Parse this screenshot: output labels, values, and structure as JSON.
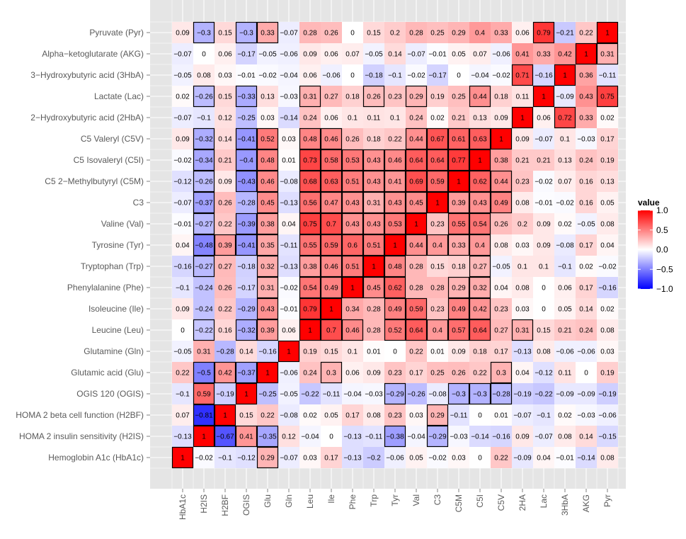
{
  "chart_data": {
    "type": "heatmap",
    "title": "",
    "xlabel": "",
    "ylabel": "",
    "x_labels": [
      "HbA1c",
      "H2IS",
      "H2BF",
      "OGIS",
      "Glu",
      "Gln",
      "Leu",
      "Ile",
      "Phe",
      "Trp",
      "Tyr",
      "Val",
      "C3",
      "C5M",
      "C5I",
      "C5V",
      "2HA",
      "Lac",
      "3HbA",
      "AKG",
      "Pyr"
    ],
    "y_labels": [
      "Pyruvate (Pyr)",
      "Alpha−ketoglutarate (AKG)",
      "3−Hydroxybutyric acid (3HbA)",
      "Lactate (Lac)",
      "2−Hydroxybutyric acid (2HbA)",
      "C5 Valeryl (C5V)",
      "C5 Isovaleryl (C5I)",
      "C5 2−Methylbutyryl (C5M)",
      "C3",
      "Valine (Val)",
      "Tyrosine (Tyr)",
      "Tryptophan (Trp)",
      "Phenylalanine (Phe)",
      "Isoleucine (Ile)",
      "Leucine (Leu)",
      "Glutamine (Gln)",
      "Glutamic acid (Glu)",
      "OGIS 120 (OGIS)",
      "HOMA 2 beta cell function (H2BF)",
      "HOMA 2 insulin sensitivity (H2IS)",
      "Hemoglobin A1c (HbA1c)"
    ],
    "values": [
      [
        0.09,
        -0.3,
        0.15,
        -0.3,
        0.33,
        -0.07,
        0.28,
        0.26,
        0,
        0.15,
        0.2,
        0.28,
        0.25,
        0.29,
        0.4,
        0.33,
        0.06,
        0.79,
        -0.21,
        0.22,
        1
      ],
      [
        -0.07,
        0,
        0.06,
        -0.17,
        -0.05,
        -0.06,
        0.09,
        0.06,
        0.07,
        -0.05,
        0.14,
        -0.07,
        -0.01,
        0.05,
        0.07,
        -0.06,
        0.41,
        0.33,
        0.42,
        1,
        0.31
      ],
      [
        -0.05,
        0.08,
        0.03,
        -0.01,
        -0.02,
        -0.04,
        0.06,
        -0.06,
        0,
        -0.18,
        -0.1,
        -0.02,
        -0.17,
        0,
        -0.04,
        -0.02,
        0.71,
        -0.16,
        1,
        0.36,
        -0.11
      ],
      [
        0.02,
        -0.26,
        0.15,
        -0.33,
        0.13,
        -0.03,
        0.31,
        0.27,
        0.18,
        0.26,
        0.23,
        0.29,
        0.19,
        0.25,
        0.44,
        0.18,
        0.11,
        1,
        -0.09,
        0.43,
        0.75
      ],
      [
        -0.07,
        -0.1,
        0.12,
        -0.25,
        0.03,
        -0.14,
        0.24,
        0.06,
        0.1,
        0.11,
        0.1,
        0.24,
        0.02,
        0.21,
        0.13,
        0.09,
        1,
        0.06,
        0.72,
        0.33,
        0.02
      ],
      [
        0.09,
        -0.32,
        0.14,
        -0.41,
        0.52,
        0.03,
        0.48,
        0.46,
        0.26,
        0.18,
        0.22,
        0.44,
        0.67,
        0.61,
        0.63,
        1,
        0.09,
        -0.07,
        0.1,
        -0.03,
        0.17
      ],
      [
        -0.02,
        -0.34,
        0.21,
        -0.4,
        0.48,
        0.01,
        0.73,
        0.58,
        0.53,
        0.43,
        0.46,
        0.64,
        0.64,
        0.77,
        1,
        0.38,
        0.21,
        0.21,
        0.13,
        0.24,
        0.19
      ],
      [
        -0.12,
        -0.26,
        0.09,
        -0.43,
        0.46,
        -0.08,
        0.68,
        0.63,
        0.51,
        0.43,
        0.41,
        0.69,
        0.59,
        1,
        0.62,
        0.44,
        0.23,
        -0.02,
        0.07,
        0.16,
        0.13
      ],
      [
        -0.07,
        -0.37,
        0.26,
        -0.28,
        0.45,
        -0.13,
        0.56,
        0.47,
        0.43,
        0.31,
        0.43,
        0.45,
        1,
        0.39,
        0.43,
        0.49,
        0.08,
        -0.01,
        -0.02,
        0.16,
        0.05
      ],
      [
        -0.01,
        -0.27,
        0.22,
        -0.39,
        0.38,
        0.04,
        0.75,
        0.7,
        0.43,
        0.43,
        0.53,
        1,
        0.23,
        0.55,
        0.54,
        0.26,
        0.2,
        0.09,
        0.02,
        -0.05,
        0.08
      ],
      [
        0.04,
        -0.48,
        0.39,
        -0.41,
        0.35,
        -0.11,
        0.55,
        0.59,
        0.6,
        0.51,
        1,
        0.44,
        0.4,
        0.33,
        0.4,
        0.08,
        0.03,
        0.09,
        -0.08,
        0.17,
        0.04
      ],
      [
        -0.16,
        -0.27,
        0.27,
        -0.18,
        0.32,
        -0.13,
        0.38,
        0.46,
        0.51,
        1,
        0.48,
        0.28,
        0.15,
        0.18,
        0.27,
        -0.05,
        0.1,
        0.1,
        -0.1,
        0.02,
        -0.02
      ],
      [
        -0.1,
        -0.24,
        0.26,
        -0.17,
        0.31,
        -0.02,
        0.54,
        0.49,
        1,
        0.45,
        0.62,
        0.28,
        0.28,
        0.29,
        0.32,
        0.04,
        0.08,
        0,
        0.06,
        0.17,
        -0.16
      ],
      [
        0.09,
        -0.24,
        0.22,
        -0.29,
        0.43,
        -0.01,
        0.79,
        1,
        0.34,
        0.28,
        0.49,
        0.59,
        0.23,
        0.49,
        0.42,
        0.23,
        0.03,
        0,
        0.05,
        0.14,
        0.02
      ],
      [
        0,
        -0.22,
        0.16,
        -0.32,
        0.39,
        0.06,
        1,
        0.7,
        0.46,
        0.28,
        0.52,
        0.64,
        0.4,
        0.57,
        0.64,
        0.27,
        0.31,
        0.15,
        0.21,
        0.24,
        0.08
      ],
      [
        -0.05,
        0.31,
        -0.28,
        0.14,
        -0.16,
        1,
        0.19,
        0.15,
        0.1,
        0.01,
        0,
        0.22,
        0.01,
        0.09,
        0.18,
        0.17,
        -0.13,
        0.08,
        -0.06,
        -0.06,
        0.03
      ],
      [
        0.22,
        -0.5,
        0.42,
        -0.37,
        1,
        -0.06,
        0.24,
        0.3,
        0.06,
        0.09,
        0.23,
        0.17,
        0.25,
        0.26,
        0.22,
        0.3,
        0.04,
        -0.12,
        0.11,
        0,
        0.19
      ],
      [
        -0.1,
        0.59,
        -0.19,
        1,
        -0.25,
        -0.05,
        -0.22,
        -0.11,
        -0.04,
        -0.03,
        -0.29,
        -0.26,
        -0.08,
        -0.3,
        -0.3,
        -0.28,
        -0.19,
        -0.22,
        -0.09,
        -0.09,
        -0.19
      ],
      [
        0.07,
        -0.81,
        1,
        0.15,
        0.22,
        -0.08,
        0.02,
        0.05,
        0.17,
        0.08,
        0.23,
        0.03,
        0.29,
        -0.11,
        0,
        0.01,
        -0.07,
        -0.1,
        0.02,
        -0.03,
        -0.06
      ],
      [
        -0.13,
        1,
        -0.67,
        0.41,
        -0.35,
        0.12,
        -0.04,
        0,
        -0.13,
        -0.11,
        -0.38,
        -0.04,
        -0.29,
        -0.03,
        -0.14,
        -0.16,
        0.09,
        -0.07,
        0.08,
        0.14,
        -0.15
      ],
      [
        1,
        -0.02,
        -0.1,
        -0.12,
        0.29,
        -0.07,
        0.03,
        0.17,
        -0.13,
        -0.2,
        -0.06,
        0.05,
        -0.02,
        0.03,
        0,
        0.22,
        -0.09,
        0.04,
        -0.01,
        -0.14,
        0.08
      ]
    ],
    "outlined": [
      [
        0,
        1
      ],
      [
        0,
        3
      ],
      [
        0,
        4
      ],
      [
        0,
        17
      ],
      [
        0,
        20
      ],
      [
        1,
        19
      ],
      [
        1,
        20
      ],
      [
        2,
        16
      ],
      [
        2,
        18
      ],
      [
        3,
        1
      ],
      [
        3,
        3
      ],
      [
        3,
        6
      ],
      [
        3,
        9
      ],
      [
        3,
        11
      ],
      [
        3,
        14
      ],
      [
        3,
        17
      ],
      [
        3,
        20
      ],
      [
        4,
        16
      ],
      [
        4,
        18
      ],
      [
        5,
        1
      ],
      [
        5,
        3
      ],
      [
        5,
        4
      ],
      [
        5,
        6
      ],
      [
        5,
        7
      ],
      [
        5,
        11
      ],
      [
        5,
        12
      ],
      [
        5,
        13
      ],
      [
        5,
        14
      ],
      [
        5,
        15
      ],
      [
        6,
        1
      ],
      [
        6,
        3
      ],
      [
        6,
        4
      ],
      [
        6,
        6
      ],
      [
        6,
        7
      ],
      [
        6,
        8
      ],
      [
        6,
        9
      ],
      [
        6,
        10
      ],
      [
        6,
        11
      ],
      [
        6,
        12
      ],
      [
        6,
        13
      ],
      [
        6,
        14
      ],
      [
        7,
        1
      ],
      [
        7,
        3
      ],
      [
        7,
        4
      ],
      [
        7,
        6
      ],
      [
        7,
        7
      ],
      [
        7,
        8
      ],
      [
        7,
        9
      ],
      [
        7,
        10
      ],
      [
        7,
        11
      ],
      [
        7,
        12
      ],
      [
        7,
        13
      ],
      [
        7,
        14
      ],
      [
        7,
        15
      ],
      [
        8,
        1
      ],
      [
        8,
        4
      ],
      [
        8,
        6
      ],
      [
        8,
        7
      ],
      [
        8,
        8
      ],
      [
        8,
        9
      ],
      [
        8,
        10
      ],
      [
        8,
        11
      ],
      [
        8,
        12
      ],
      [
        8,
        13
      ],
      [
        8,
        14
      ],
      [
        8,
        15
      ],
      [
        9,
        1
      ],
      [
        9,
        3
      ],
      [
        9,
        4
      ],
      [
        9,
        6
      ],
      [
        9,
        7
      ],
      [
        9,
        8
      ],
      [
        9,
        9
      ],
      [
        9,
        10
      ],
      [
        9,
        11
      ],
      [
        9,
        13
      ],
      [
        9,
        14
      ],
      [
        10,
        1
      ],
      [
        10,
        2
      ],
      [
        10,
        3
      ],
      [
        10,
        4
      ],
      [
        10,
        6
      ],
      [
        10,
        7
      ],
      [
        10,
        8
      ],
      [
        10,
        9
      ],
      [
        10,
        10
      ],
      [
        10,
        11
      ],
      [
        10,
        12
      ],
      [
        10,
        13
      ],
      [
        10,
        14
      ],
      [
        11,
        1
      ],
      [
        11,
        4
      ],
      [
        11,
        6
      ],
      [
        11,
        7
      ],
      [
        11,
        8
      ],
      [
        11,
        9
      ],
      [
        11,
        10
      ],
      [
        11,
        14
      ],
      [
        12,
        4
      ],
      [
        12,
        6
      ],
      [
        12,
        7
      ],
      [
        12,
        8
      ],
      [
        12,
        9
      ],
      [
        12,
        10
      ],
      [
        12,
        13
      ],
      [
        12,
        14
      ],
      [
        13,
        4
      ],
      [
        13,
        6
      ],
      [
        13,
        7
      ],
      [
        13,
        10
      ],
      [
        13,
        11
      ],
      [
        13,
        13
      ],
      [
        13,
        14
      ],
      [
        14,
        1
      ],
      [
        14,
        3
      ],
      [
        14,
        4
      ],
      [
        14,
        6
      ],
      [
        14,
        7
      ],
      [
        14,
        8
      ],
      [
        14,
        10
      ],
      [
        14,
        11
      ],
      [
        14,
        12
      ],
      [
        14,
        13
      ],
      [
        14,
        14
      ],
      [
        14,
        16
      ],
      [
        15,
        5
      ],
      [
        16,
        1
      ],
      [
        16,
        2
      ],
      [
        16,
        3
      ],
      [
        16,
        4
      ],
      [
        16,
        7
      ],
      [
        16,
        15
      ],
      [
        17,
        1
      ],
      [
        17,
        3
      ],
      [
        17,
        10
      ],
      [
        17,
        13
      ],
      [
        17,
        14
      ],
      [
        17,
        15
      ],
      [
        18,
        1
      ],
      [
        18,
        2
      ],
      [
        18,
        12
      ],
      [
        19,
        1
      ],
      [
        19,
        2
      ],
      [
        19,
        3
      ],
      [
        19,
        4
      ],
      [
        19,
        10
      ],
      [
        19,
        12
      ],
      [
        20,
        0
      ],
      [
        20,
        4
      ]
    ],
    "legend": {
      "title": "value",
      "ticks": [
        1.0,
        0.5,
        0.0,
        -0.5,
        -1.0
      ],
      "tick_labels": [
        "1.0",
        "0.5",
        "0.0",
        "−0.5",
        "−1.0"
      ],
      "low_color": "#0000ff",
      "mid_color": "#ffffff",
      "high_color": "#ff0000",
      "limits": [
        -1,
        1
      ],
      "position": "right"
    },
    "panel_background": "#e5e5e5"
  }
}
